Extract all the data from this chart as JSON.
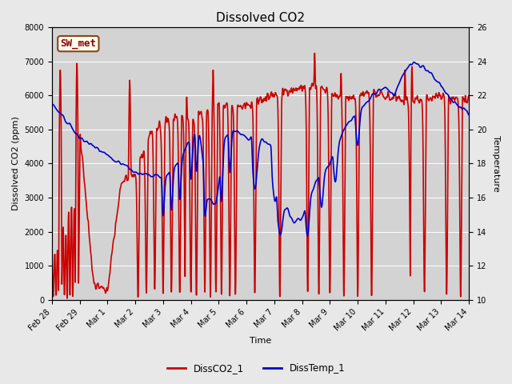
{
  "title": "Dissolved CO2",
  "xlabel": "Time",
  "ylabel_left": "Dissolved CO2 (ppm)",
  "ylabel_right": "Temperature",
  "ylim_left": [
    0,
    8000
  ],
  "ylim_right": [
    10,
    26
  ],
  "x_ticks_labels": [
    "Feb 28",
    "Feb 29",
    "Mar 1",
    "Mar 2",
    "Mar 3",
    "Mar 4",
    "Mar 5",
    "Mar 6",
    "Mar 7",
    "Mar 8",
    "Mar 9",
    "Mar 10",
    "Mar 11",
    "Mar 12",
    "Mar 13",
    "Mar 14"
  ],
  "x_ticks_pos": [
    0,
    1,
    2,
    3,
    4,
    5,
    6,
    7,
    8,
    9,
    10,
    11,
    12,
    13,
    14,
    15
  ],
  "annotation_text": "SW_met",
  "line1_color": "#cc0000",
  "line2_color": "#0000cc",
  "line1_label": "DissCO2_1",
  "line2_label": "DissTemp_1",
  "line_width": 1.2,
  "fig_bg_color": "#e8e8e8",
  "plot_bg_color": "#d3d3d3",
  "title_fontsize": 11,
  "tick_fontsize": 7,
  "label_fontsize": 8,
  "yticks_right": [
    10,
    12,
    14,
    16,
    18,
    20,
    22,
    24,
    26
  ],
  "yticks_left": [
    0,
    1000,
    2000,
    3000,
    4000,
    5000,
    6000,
    7000,
    8000
  ]
}
